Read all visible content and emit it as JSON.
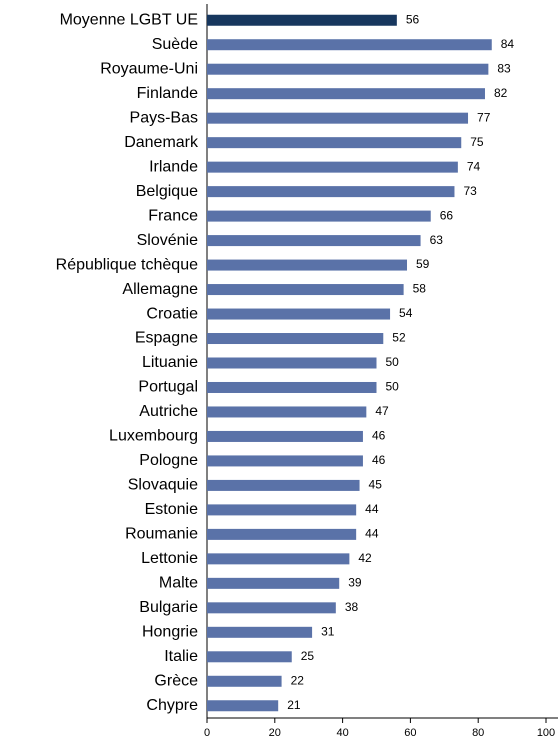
{
  "chart_data": {
    "type": "barh",
    "categories": [
      "Moyenne LGBT UE",
      "Suède",
      "Royaume-Uni",
      "Finlande",
      "Pays-Bas",
      "Danemark",
      "Irlande",
      "Belgique",
      "France",
      "Slovénie",
      "République tchèque",
      "Allemagne",
      "Croatie",
      "Espagne",
      "Lituanie",
      "Portugal",
      "Autriche",
      "Luxembourg",
      "Pologne",
      "Slovaquie",
      "Estonie",
      "Roumanie",
      "Lettonie",
      "Malte",
      "Bulgarie",
      "Hongrie",
      "Italie",
      "Grèce",
      "Chypre"
    ],
    "values": [
      56,
      84,
      83,
      82,
      77,
      75,
      74,
      73,
      66,
      63,
      59,
      58,
      54,
      52,
      50,
      50,
      47,
      46,
      46,
      45,
      44,
      44,
      42,
      39,
      38,
      31,
      25,
      22,
      21
    ],
    "colors": [
      "#17375e",
      "#5a72a8",
      "#5a72a8",
      "#5a72a8",
      "#5a72a8",
      "#5a72a8",
      "#5a72a8",
      "#5a72a8",
      "#5a72a8",
      "#5a72a8",
      "#5a72a8",
      "#5a72a8",
      "#5a72a8",
      "#5a72a8",
      "#5a72a8",
      "#5a72a8",
      "#5a72a8",
      "#5a72a8",
      "#5a72a8",
      "#5a72a8",
      "#5a72a8",
      "#5a72a8",
      "#5a72a8",
      "#5a72a8",
      "#5a72a8",
      "#5a72a8",
      "#5a72a8",
      "#5a72a8",
      "#5a72a8"
    ],
    "xlim": [
      0,
      100
    ],
    "xticks": [
      0,
      20,
      40,
      60,
      80,
      100
    ],
    "grid": false
  }
}
